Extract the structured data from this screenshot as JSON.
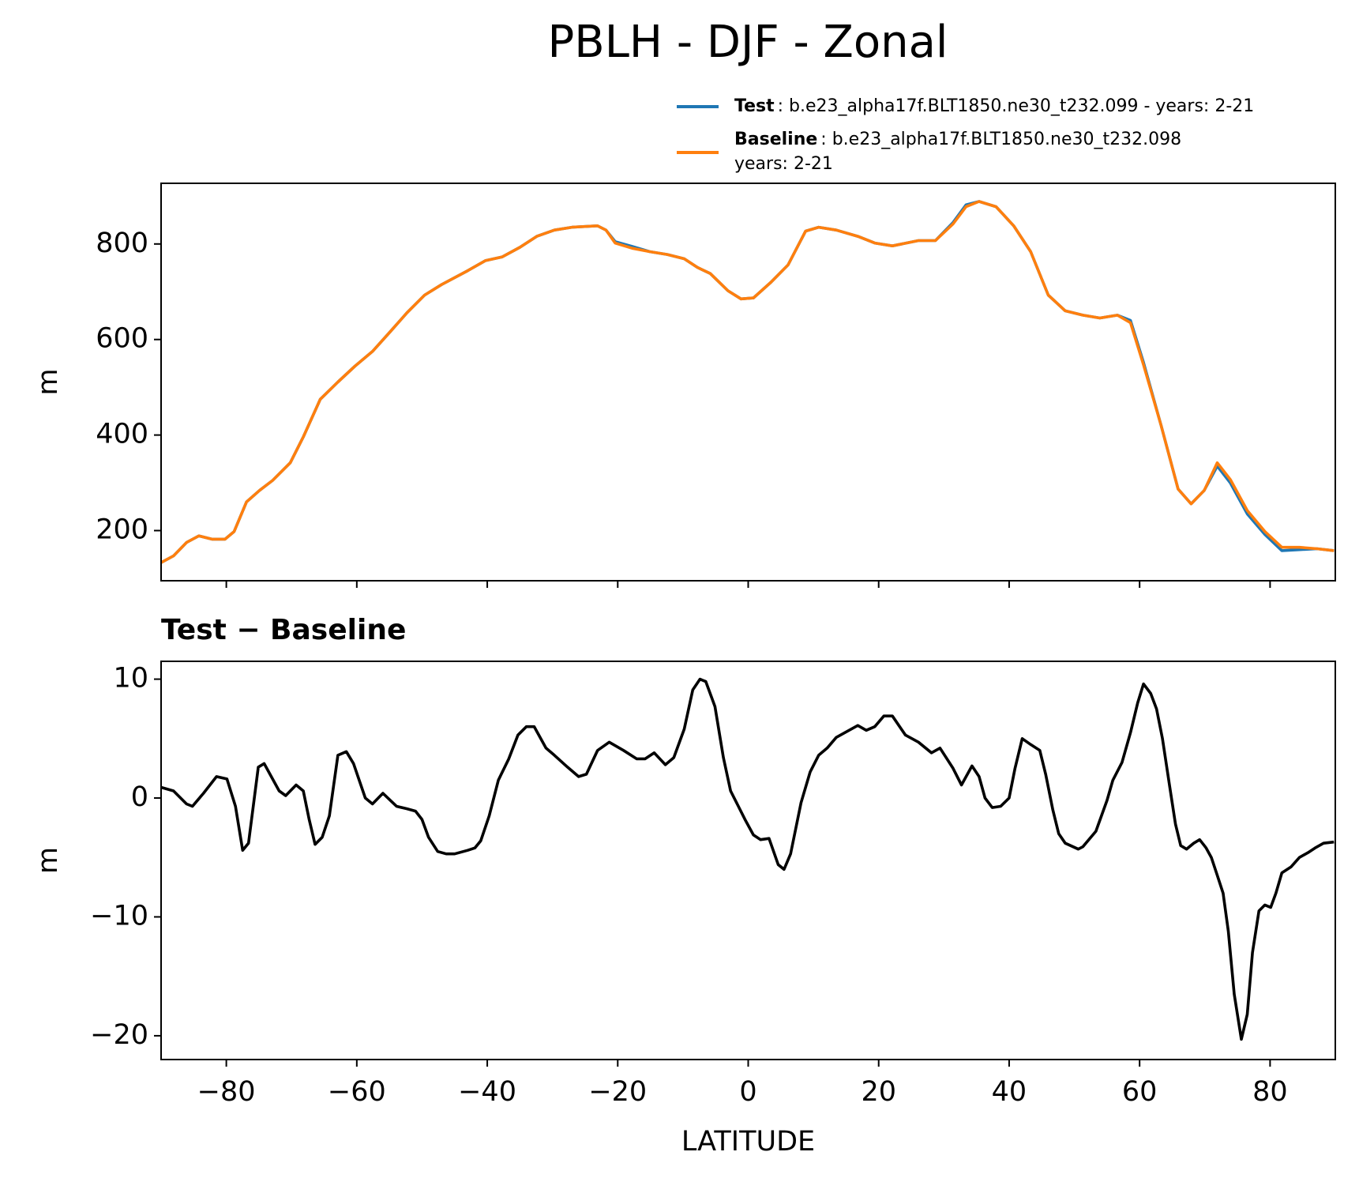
{
  "chart_data": [
    {
      "type": "line",
      "title": "PBLH - DJF - Zonal",
      "ylabel": "m",
      "x": [
        -90,
        -88.1,
        -86.1,
        -84.2,
        -82.2,
        -80.2,
        -78.8,
        -76.9,
        -74.9,
        -72.9,
        -70.2,
        -68.2,
        -65.6,
        -62.9,
        -60.3,
        -57.6,
        -54.9,
        -52.3,
        -49.6,
        -47,
        -43,
        -40.3,
        -37.7,
        -35,
        -32.4,
        -29.7,
        -27,
        -23.1,
        -21.8,
        -20.4,
        -17.8,
        -15.1,
        -12.4,
        -9.8,
        -7.8,
        -5.8,
        -3.1,
        -1.1,
        0.8,
        3.5,
        6.1,
        8.8,
        10.8,
        13.5,
        16.8,
        19.4,
        22.1,
        26.1,
        28.7,
        31.4,
        33.4,
        35.4,
        38,
        40.7,
        43.3,
        46,
        48.6,
        51.3,
        53.9,
        56.6,
        58.6,
        60.6,
        63.3,
        65.9,
        67.9,
        69.9,
        71.9,
        73.9,
        76.5,
        79.2,
        81.8,
        84.5,
        87.2,
        89.8
      ],
      "series": [
        {
          "name": "Test",
          "description": ": b.e23_alpha17f.BLT1850.ne30_t232.099 - years: 2-21",
          "color": "#1f77b4",
          "values": [
            133,
            147,
            175,
            189,
            182,
            182,
            198,
            260,
            284,
            305,
            342,
            396,
            475,
            511,
            544,
            575,
            616,
            656,
            693,
            715,
            744,
            765,
            773,
            793,
            816,
            829,
            835,
            838,
            829,
            805,
            795,
            784,
            778,
            769,
            751,
            738,
            702,
            685,
            687,
            720,
            756,
            827,
            835,
            829,
            816,
            802,
            796,
            807,
            807,
            845,
            882,
            889,
            878,
            838,
            784,
            693,
            660,
            651,
            645,
            651,
            640,
            552,
            420,
            287,
            256,
            284,
            335,
            300,
            235,
            192,
            158,
            160,
            162,
            158
          ]
        },
        {
          "name": "Baseline",
          "description": [
            ": b.e23_alpha17f.BLT1850.ne30_t232.098",
            "years: 2-21"
          ],
          "color": "#ff7f0e",
          "values": [
            133,
            147,
            175,
            189,
            182,
            182,
            198,
            260,
            284,
            305,
            342,
            396,
            475,
            511,
            544,
            575,
            616,
            656,
            693,
            715,
            744,
            765,
            773,
            793,
            816,
            829,
            835,
            838,
            829,
            802,
            791,
            784,
            778,
            769,
            751,
            738,
            702,
            685,
            687,
            720,
            756,
            827,
            835,
            829,
            816,
            802,
            796,
            807,
            807,
            842,
            878,
            889,
            878,
            838,
            784,
            693,
            660,
            651,
            645,
            651,
            635,
            547,
            420,
            287,
            256,
            284,
            342,
            307,
            242,
            198,
            165,
            165,
            162,
            158
          ]
        }
      ],
      "xlim": [
        -90,
        90
      ],
      "xticks": [
        -80,
        -60,
        -40,
        -20,
        0,
        20,
        40,
        60,
        80
      ],
      "ylim": [
        95,
        927
      ],
      "yticks": [
        200,
        400,
        600,
        800
      ]
    },
    {
      "type": "line",
      "title": "Test − Baseline",
      "xlabel": "LATITUDE",
      "ylabel": "m",
      "x": [
        -90,
        -88.1,
        -86.1,
        -85.2,
        -83.5,
        -81.5,
        -79.9,
        -78.6,
        -77.5,
        -76.6,
        -75.1,
        -74.2,
        -71.9,
        -70.9,
        -69.3,
        -68.2,
        -67.3,
        -66.4,
        -65.3,
        -64.2,
        -62.9,
        -61.6,
        -60.5,
        -58.7,
        -57.6,
        -56,
        -53.9,
        -52.3,
        -51,
        -50,
        -49,
        -47.6,
        -46.3,
        -45,
        -43,
        -41.9,
        -41,
        -39.7,
        -38.3,
        -36.7,
        -35.3,
        -34,
        -32.8,
        -31,
        -29.7,
        -27.7,
        -26,
        -24.8,
        -23.1,
        -21.3,
        -19.1,
        -17.1,
        -15.8,
        -14.4,
        -12.7,
        -11.4,
        -9.8,
        -8.5,
        -7.4,
        -6.5,
        -5.1,
        -3.8,
        -2.7,
        -1.6,
        -0.5,
        0.8,
        1.9,
        3.2,
        4.6,
        5.5,
        6.5,
        8.1,
        9.5,
        10.8,
        12.1,
        13.5,
        14.8,
        16.8,
        18.1,
        19.4,
        20.8,
        22.1,
        24.1,
        26.1,
        28.1,
        29.4,
        31.4,
        32.7,
        34.3,
        35.4,
        36.3,
        37.4,
        38.7,
        40,
        40.9,
        42,
        43.3,
        44.7,
        45.6,
        46.7,
        47.6,
        48.6,
        50.6,
        51.3,
        53.3,
        55,
        55.9,
        57.3,
        58.6,
        59.7,
        60.6,
        61.7,
        62.6,
        63.5,
        64.6,
        65.5,
        66.3,
        67.2,
        68.3,
        69.2,
        70.2,
        71,
        71.9,
        72.8,
        73.6,
        74.5,
        75.6,
        76.5,
        77.3,
        78.3,
        79.2,
        80.1,
        80.9,
        81.8,
        83.2,
        84.5,
        85.8,
        86.9,
        88.2,
        89.8
      ],
      "series": [
        {
          "name": "Test − Baseline",
          "color": "#000000",
          "values": [
            0.9,
            0.6,
            -0.5,
            -0.7,
            0.4,
            1.8,
            1.6,
            -0.7,
            -4.4,
            -3.8,
            2.6,
            2.9,
            0.6,
            0.2,
            1.1,
            0.6,
            -1.8,
            -3.9,
            -3.3,
            -1.5,
            3.6,
            3.9,
            2.9,
            0,
            -0.5,
            0.4,
            -0.7,
            -0.9,
            -1.1,
            -1.8,
            -3.3,
            -4.5,
            -4.7,
            -4.7,
            -4.4,
            -4.2,
            -3.6,
            -1.5,
            1.5,
            3.3,
            5.3,
            6,
            6,
            4.2,
            3.6,
            2.6,
            1.8,
            2,
            4,
            4.7,
            4,
            3.3,
            3.3,
            3.8,
            2.8,
            3.4,
            5.8,
            9.1,
            10,
            9.8,
            7.7,
            3.4,
            0.6,
            -0.6,
            -1.8,
            -3.1,
            -3.5,
            -3.4,
            -5.6,
            -6,
            -4.7,
            -0.4,
            2.2,
            3.6,
            4.2,
            5.1,
            5.5,
            6.1,
            5.7,
            6,
            6.9,
            6.9,
            5.3,
            4.7,
            3.8,
            4.2,
            2.5,
            1.1,
            2.7,
            1.8,
            0,
            -0.8,
            -0.7,
            0,
            2.5,
            5,
            4.5,
            4,
            2,
            -1,
            -3,
            -3.8,
            -4.3,
            -4.1,
            -2.8,
            -0.2,
            1.5,
            3,
            5.5,
            8,
            9.6,
            8.8,
            7.5,
            5,
            1,
            -2.2,
            -4,
            -4.3,
            -3.8,
            -3.5,
            -4.2,
            -5,
            -6.5,
            -8,
            -11.2,
            -16.5,
            -20.3,
            -18.2,
            -13,
            -9.5,
            -9,
            -9.2,
            -8,
            -6.3,
            -5.8,
            -5,
            -4.6,
            -4.2,
            -3.8,
            -3.7
          ]
        }
      ],
      "xlim": [
        -90,
        90
      ],
      "xticks": [
        {
          "value": -80,
          "label": "−80"
        },
        {
          "value": -60,
          "label": "−60"
        },
        {
          "value": -40,
          "label": "−40"
        },
        {
          "value": -20,
          "label": "−20"
        },
        0,
        20,
        40,
        60,
        80
      ],
      "ylim": [
        -22,
        11.5
      ],
      "yticks": [
        {
          "value": -20,
          "label": "−20"
        },
        {
          "value": -10,
          "label": "−10"
        },
        0,
        10
      ]
    }
  ]
}
